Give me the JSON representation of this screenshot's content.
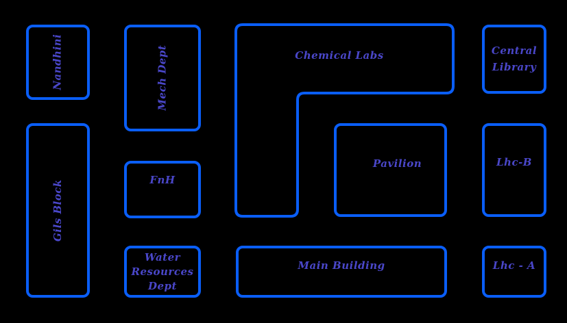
{
  "map": {
    "background": "#000000",
    "outline_color": "#0a5ef8",
    "label_color": "#4a47c9",
    "buildings": {
      "nandhini": "Nandhini",
      "mech_dept": "Mech Dept",
      "chemical_labs": "Chemical Labs",
      "central_library": "Central\nLibrary",
      "gils_block": "Gils Block",
      "fnh": "FnH",
      "pavilion": "Pavilion",
      "lhc_b": "Lhc-B",
      "water_resources": "Water\nResources\nDept",
      "main_building": "Main Building",
      "lhc_a": "Lhc - A"
    }
  }
}
